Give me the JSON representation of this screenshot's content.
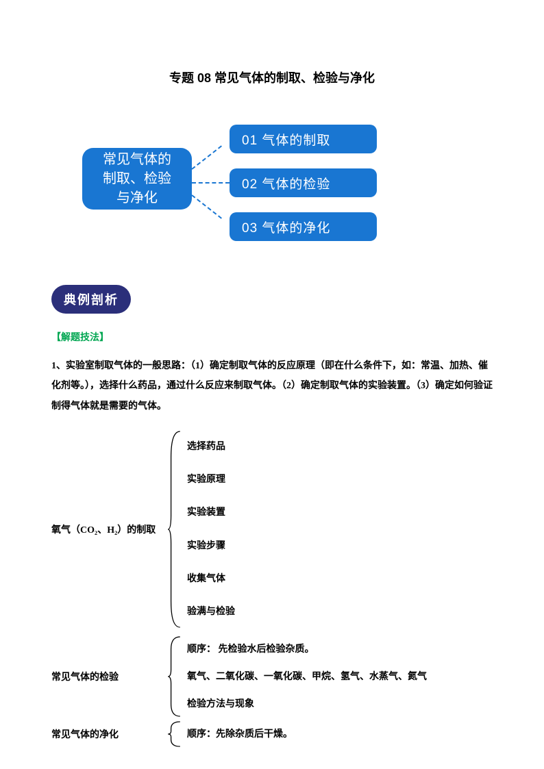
{
  "title": "专题 08  常见气体的制取、检验与净化",
  "diagram": {
    "root": "常见气体的\n制取、检验\n与净化",
    "children": [
      "01  气体的制取",
      "02  气体的检验",
      "03  气体的净化"
    ],
    "colors": {
      "node_bg": "#1976d2",
      "node_text": "#ffffff",
      "dash": "#1976d2"
    }
  },
  "badge": "典例剖析",
  "section_label": "【解题技法】",
  "paragraph": "1、实验室制取气体的一般思路：（1）确定制取气体的反应原理（即在什么条件下，如：常温、加热、催化剂等。），选择什么药品，通过什么反应来制取气体。（2）确定制取气体的实验装置。（3）确定如何验证制得气体就是需要的气体。",
  "outline": [
    {
      "label": "氧气（CO₂、H₂）的制取",
      "items": [
        "选择药品",
        "实验原理",
        "实验装置",
        "实验步骤",
        "收集气体",
        "验满与检验"
      ]
    },
    {
      "label": "常见气体的检验",
      "items": [
        "顺序：  先检验水后检验杂质。",
        "氧气、二氧化碳、一氧化碳、甲烷、氢气、水蒸气、氮气",
        "检验方法与现象"
      ]
    },
    {
      "label": "常见气体的净化",
      "items": [
        "顺序：先除杂质后干燥。"
      ]
    }
  ],
  "colors": {
    "badge_bg": "#2b2f7a",
    "section_green": "#00a651",
    "text": "#000000",
    "background": "#ffffff"
  }
}
